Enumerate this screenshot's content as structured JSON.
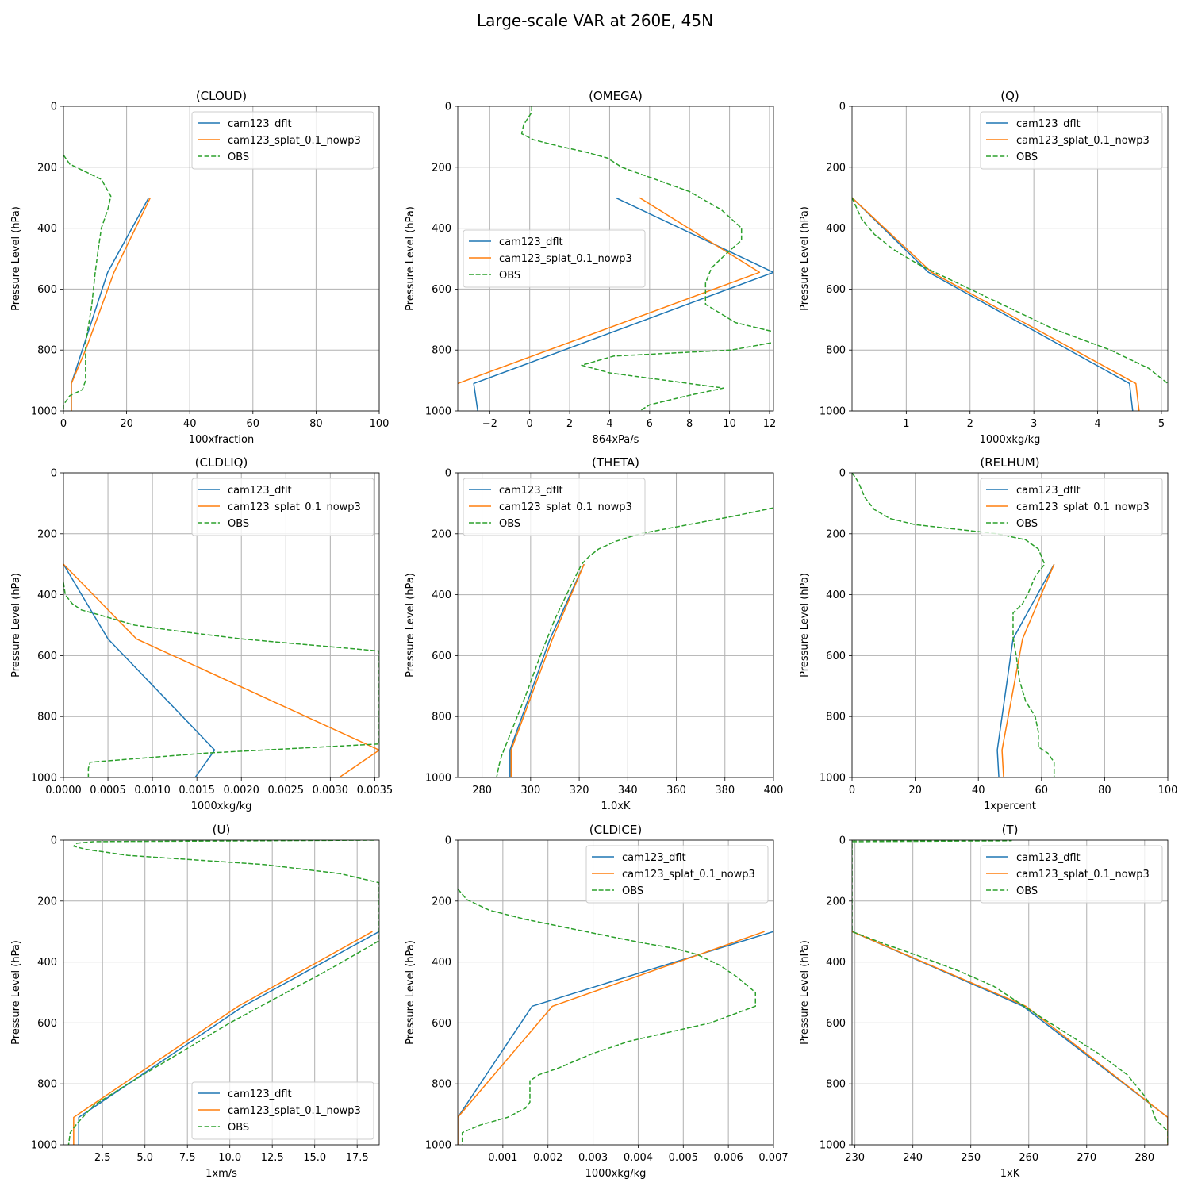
{
  "figure": {
    "title": "Large-scale VAR at 260E, 45N"
  },
  "series_styles": {
    "cam123_dflt": "#1f77b4",
    "cam123_splat_0.1_nowp3": "#ff7f0e",
    "OBS": "#2ca02c"
  },
  "chart_data": [
    {
      "type": "line",
      "title": "(CLOUD)",
      "xlabel": "100xfraction",
      "ylabel": "Pressure Level (hPa)",
      "xlim": [
        0,
        100
      ],
      "ylim": [
        1000,
        0
      ],
      "xticks": [
        0,
        20,
        40,
        60,
        80,
        100
      ],
      "xtick_labels": [
        "0",
        "20",
        "40",
        "60",
        "80",
        "100"
      ],
      "yticks": [
        0,
        200,
        400,
        600,
        800,
        1000
      ],
      "grid": true,
      "legend": "upper right",
      "series": [
        {
          "name": "cam123_dflt",
          "style": "solid",
          "x": [
            27,
            14,
            2.5,
            2.5
          ],
          "y": [
            300,
            545,
            910,
            1000
          ]
        },
        {
          "name": "cam123_splat_0.1_nowp3",
          "style": "solid",
          "x": [
            27.5,
            16,
            7,
            2.5,
            2.5
          ],
          "y": [
            300,
            545,
            800,
            910,
            1000
          ]
        },
        {
          "name": "OBS",
          "style": "dashed",
          "x": [
            0,
            2,
            6,
            12,
            15,
            14,
            12,
            11,
            10,
            9,
            7,
            7,
            6,
            2,
            0,
            0
          ],
          "y": [
            160,
            190,
            210,
            240,
            295,
            340,
            400,
            470,
            550,
            650,
            780,
            900,
            930,
            950,
            980,
            1000
          ]
        }
      ]
    },
    {
      "type": "line",
      "title": "(OMEGA)",
      "xlabel": "864xPa/s",
      "ylabel": "Pressure Level (hPa)",
      "xlim": [
        -3.6,
        12.2
      ],
      "ylim": [
        1000,
        0
      ],
      "xticks": [
        -2,
        0,
        2,
        4,
        6,
        8,
        10,
        12
      ],
      "xtick_labels": [
        "−2",
        "0",
        "2",
        "4",
        "6",
        "8",
        "10",
        "12"
      ],
      "yticks": [
        0,
        200,
        400,
        600,
        800,
        1000
      ],
      "grid": true,
      "legend": "center left",
      "series": [
        {
          "name": "cam123_dflt",
          "style": "solid",
          "x": [
            4.3,
            12.2,
            -2.8,
            -2.6
          ],
          "y": [
            300,
            545,
            910,
            1000
          ]
        },
        {
          "name": "cam123_splat_0.1_nowp3",
          "style": "solid",
          "x": [
            5.5,
            11.5,
            -3.6
          ],
          "y": [
            300,
            545,
            910
          ]
        },
        {
          "name": "OBS",
          "style": "dashed",
          "x": [
            0.1,
            0.1,
            -0.3,
            -0.4,
            0.2,
            1.4,
            2.8,
            3.9,
            4.6,
            6.3,
            8,
            9.6,
            10.6,
            10.6,
            9.9,
            9.1,
            8.8,
            8.8,
            10.3,
            12.2,
            12.2,
            10.1,
            4.2,
            2.6,
            4,
            9.7,
            7.9,
            6,
            5.5
          ],
          "y": [
            0,
            20,
            60,
            90,
            110,
            130,
            150,
            170,
            200,
            240,
            280,
            340,
            400,
            440,
            480,
            530,
            580,
            650,
            710,
            740,
            775,
            800,
            820,
            850,
            875,
            925,
            950,
            980,
            1000
          ]
        }
      ]
    },
    {
      "type": "line",
      "title": "(Q)",
      "xlabel": "1000xkg/kg",
      "ylabel": "Pressure Level (hPa)",
      "xlim": [
        0.15,
        5.1
      ],
      "ylim": [
        1000,
        0
      ],
      "xticks": [
        1,
        2,
        3,
        4,
        5
      ],
      "xtick_labels": [
        "1",
        "2",
        "3",
        "4",
        "5"
      ],
      "yticks": [
        0,
        200,
        400,
        600,
        800,
        1000
      ],
      "grid": true,
      "legend": "upper right",
      "series": [
        {
          "name": "cam123_dflt",
          "style": "solid",
          "x": [
            0.15,
            1.35,
            4.5,
            4.55
          ],
          "y": [
            300,
            545,
            910,
            1000
          ]
        },
        {
          "name": "cam123_splat_0.1_nowp3",
          "style": "solid",
          "x": [
            0.15,
            1.4,
            4.6,
            4.65
          ],
          "y": [
            300,
            545,
            910,
            1000
          ]
        },
        {
          "name": "OBS",
          "style": "dashed",
          "x": [
            0.15,
            0.3,
            0.5,
            0.8,
            1.2,
            1.8,
            2.5,
            3.3,
            4.2,
            4.8,
            5.1
          ],
          "y": [
            300,
            370,
            420,
            470,
            520,
            580,
            650,
            730,
            800,
            860,
            910
          ]
        }
      ]
    },
    {
      "type": "line",
      "title": "(CLDLIQ)",
      "xlabel": "1000xkg/kg",
      "ylabel": "Pressure Level (hPa)",
      "xlim": [
        0,
        0.00355
      ],
      "ylim": [
        1000,
        0
      ],
      "xticks": [
        0,
        0.0005,
        0.001,
        0.0015,
        0.002,
        0.0025,
        0.003,
        0.0035
      ],
      "xtick_labels": [
        "0.0000",
        "0.0005",
        "0.0010",
        "0.0015",
        "0.0020",
        "0.0025",
        "0.0030",
        "0.0035"
      ],
      "yticks": [
        0,
        200,
        400,
        600,
        800,
        1000
      ],
      "grid": true,
      "legend": "upper right",
      "series": [
        {
          "name": "cam123_dflt",
          "style": "solid",
          "x": [
            0,
            0.0005,
            0.0017,
            0.00148
          ],
          "y": [
            300,
            545,
            910,
            1000
          ]
        },
        {
          "name": "cam123_splat_0.1_nowp3",
          "style": "solid",
          "x": [
            0,
            0.00082,
            0.00355,
            0.0031
          ],
          "y": [
            300,
            545,
            910,
            1000
          ]
        },
        {
          "name": "OBS",
          "style": "dashed",
          "x": [
            0,
            2e-05,
            0.0001,
            0.0002,
            0.00045,
            0.0008,
            0.0013,
            0.002,
            0.00355,
            0.00355,
            0.0016,
            0.0003,
            0.00028,
            0.00028
          ],
          "y": [
            360,
            400,
            430,
            450,
            470,
            500,
            520,
            545,
            585,
            890,
            920,
            950,
            970,
            1000
          ]
        }
      ]
    },
    {
      "type": "line",
      "title": "(THETA)",
      "xlabel": "1.0xK",
      "ylabel": "Pressure Level (hPa)",
      "xlim": [
        270,
        400
      ],
      "ylim": [
        1000,
        0
      ],
      "xticks": [
        280,
        300,
        320,
        340,
        360,
        380,
        400
      ],
      "xtick_labels": [
        "280",
        "300",
        "320",
        "340",
        "360",
        "380",
        "400"
      ],
      "yticks": [
        0,
        200,
        400,
        600,
        800,
        1000
      ],
      "grid": true,
      "legend": "upper left",
      "series": [
        {
          "name": "cam123_dflt",
          "style": "solid",
          "x": [
            322,
            308,
            291.5,
            291.5
          ],
          "y": [
            300,
            545,
            910,
            1000
          ]
        },
        {
          "name": "cam123_splat_0.1_nowp3",
          "style": "solid",
          "x": [
            322,
            309,
            292,
            292
          ],
          "y": [
            300,
            545,
            910,
            1000
          ]
        },
        {
          "name": "OBS",
          "style": "dashed",
          "x": [
            400,
            385,
            365,
            345,
            335,
            328,
            324,
            321,
            316,
            310,
            304,
            298,
            292,
            288,
            287,
            286
          ],
          "y": [
            115,
            140,
            170,
            200,
            225,
            250,
            275,
            300,
            380,
            480,
            600,
            730,
            850,
            930,
            960,
            1000
          ]
        }
      ]
    },
    {
      "type": "line",
      "title": "(RELHUM)",
      "xlabel": "1xpercent",
      "ylabel": "Pressure Level (hPa)",
      "xlim": [
        0,
        100
      ],
      "ylim": [
        1000,
        0
      ],
      "xticks": [
        0,
        20,
        40,
        60,
        80,
        100
      ],
      "xtick_labels": [
        "0",
        "20",
        "40",
        "60",
        "80",
        "100"
      ],
      "yticks": [
        0,
        200,
        400,
        600,
        800,
        1000
      ],
      "grid": true,
      "legend": "upper right",
      "series": [
        {
          "name": "cam123_dflt",
          "style": "solid",
          "x": [
            64,
            51,
            46,
            46.5
          ],
          "y": [
            300,
            545,
            910,
            1000
          ]
        },
        {
          "name": "cam123_splat_0.1_nowp3",
          "style": "solid",
          "x": [
            64,
            54,
            47.5,
            48
          ],
          "y": [
            300,
            545,
            910,
            1000
          ]
        },
        {
          "name": "OBS",
          "style": "dashed",
          "x": [
            0,
            2,
            4,
            7,
            12,
            20,
            33,
            46,
            55,
            59,
            61,
            58,
            56,
            54,
            51,
            51,
            52,
            53,
            55,
            58,
            59,
            59,
            62,
            64,
            64
          ],
          "y": [
            0,
            30,
            80,
            120,
            150,
            170,
            185,
            200,
            220,
            250,
            300,
            340,
            390,
            430,
            460,
            540,
            600,
            680,
            750,
            800,
            850,
            900,
            920,
            950,
            1000
          ]
        }
      ]
    },
    {
      "type": "line",
      "title": "(U)",
      "xlabel": "1xm/s",
      "ylabel": "Pressure Level (hPa)",
      "xlim": [
        0.2,
        18.8
      ],
      "ylim": [
        1000,
        0
      ],
      "xticks": [
        2.5,
        5,
        7.5,
        10,
        12.5,
        15,
        17.5
      ],
      "xtick_labels": [
        "2.5",
        "5.0",
        "7.5",
        "10.0",
        "12.5",
        "15.0",
        "17.5"
      ],
      "yticks": [
        0,
        200,
        400,
        600,
        800,
        1000
      ],
      "grid": true,
      "legend": "lower right",
      "series": [
        {
          "name": "cam123_dflt",
          "style": "solid",
          "x": [
            18.8,
            10.8,
            1.1,
            1.1
          ],
          "y": [
            300,
            545,
            910,
            1000
          ]
        },
        {
          "name": "cam123_splat_0.1_nowp3",
          "style": "solid",
          "x": [
            18.4,
            10.5,
            0.8,
            0.8
          ],
          "y": [
            300,
            545,
            910,
            1000
          ]
        },
        {
          "name": "OBS",
          "style": "dashed",
          "x": [
            18.5,
            2,
            1,
            0.8,
            1.5,
            4,
            8,
            12,
            16.5,
            18.8,
            18.8,
            16,
            13,
            10,
            7,
            4,
            2,
            1,
            0.6,
            0.5
          ],
          "y": [
            0,
            5,
            10,
            20,
            30,
            50,
            65,
            80,
            110,
            140,
            330,
            420,
            510,
            600,
            700,
            800,
            870,
            930,
            960,
            1000
          ]
        }
      ]
    },
    {
      "type": "line",
      "title": "(CLDICE)",
      "xlabel": "1000xkg/kg",
      "ylabel": "Pressure Level (hPa)",
      "xlim": [
        0,
        0.007
      ],
      "ylim": [
        1000,
        0
      ],
      "xticks": [
        0.001,
        0.002,
        0.003,
        0.004,
        0.005,
        0.006,
        0.007
      ],
      "xtick_labels": [
        "0.001",
        "0.002",
        "0.003",
        "0.004",
        "0.005",
        "0.006",
        "0.007"
      ],
      "yticks": [
        0,
        200,
        400,
        600,
        800,
        1000
      ],
      "grid": true,
      "legend": "upper right",
      "series": [
        {
          "name": "cam123_dflt",
          "style": "solid",
          "x": [
            0.007,
            0.00165,
            0,
            0
          ],
          "y": [
            300,
            545,
            910,
            1000
          ]
        },
        {
          "name": "cam123_splat_0.1_nowp3",
          "style": "solid",
          "x": [
            0.0068,
            0.0021,
            0,
            0
          ],
          "y": [
            300,
            545,
            910,
            1000
          ]
        },
        {
          "name": "OBS",
          "style": "dashed",
          "x": [
            0,
            0.0002,
            0.0007,
            0.0015,
            0.0025,
            0.0035,
            0.0042,
            0.0048,
            0.0053,
            0.0058,
            0.0062,
            0.0066,
            0.0066,
            0.0056,
            0.0047,
            0.0038,
            0.003,
            0.0022,
            0.0018,
            0.0016,
            0.0016,
            0.0015,
            0.0011,
            0.0005,
            0.0001,
            0.0001
          ],
          "y": [
            160,
            195,
            230,
            260,
            290,
            320,
            340,
            355,
            375,
            410,
            450,
            500,
            545,
            600,
            630,
            660,
            700,
            750,
            770,
            790,
            860,
            880,
            910,
            935,
            960,
            1000
          ]
        }
      ]
    },
    {
      "type": "line",
      "title": "(T)",
      "xlabel": "1xK",
      "ylabel": "Pressure Level (hPa)",
      "xlim": [
        229.5,
        284
      ],
      "ylim": [
        1000,
        0
      ],
      "xticks": [
        230,
        240,
        250,
        260,
        270,
        280
      ],
      "xtick_labels": [
        "230",
        "240",
        "250",
        "260",
        "270",
        "280"
      ],
      "yticks": [
        0,
        200,
        400,
        600,
        800,
        1000
      ],
      "grid": true,
      "legend": "upper right",
      "series": [
        {
          "name": "cam123_dflt",
          "style": "solid",
          "x": [
            229.5,
            259,
            284,
            284
          ],
          "y": [
            300,
            545,
            910,
            1000
          ]
        },
        {
          "name": "cam123_splat_0.1_nowp3",
          "style": "solid",
          "x": [
            229.5,
            259.5,
            284,
            284
          ],
          "y": [
            300,
            545,
            910,
            1000
          ]
        },
        {
          "name": "OBS",
          "style": "dashed",
          "x": [
            229.5,
            257,
            229.5,
            229.5,
            235,
            241,
            248,
            254,
            258,
            262,
            267,
            272,
            277,
            280,
            281,
            282,
            284,
            284
          ],
          "y": [
            0,
            2,
            5,
            300,
            340,
            380,
            430,
            480,
            530,
            580,
            640,
            700,
            770,
            840,
            870,
            920,
            955,
            1000
          ]
        }
      ]
    }
  ]
}
